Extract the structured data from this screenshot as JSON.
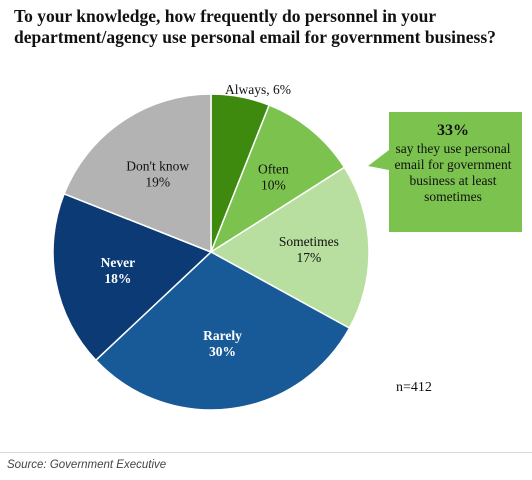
{
  "chart_data": {
    "type": "pie",
    "title": "To your knowledge, how frequently do personnel in your department/agency use personal email for government business?",
    "slices": [
      {
        "label": "Always, 6%",
        "category": "Always",
        "value": 6,
        "color": "#3e8a0f"
      },
      {
        "label": "Often\n10%",
        "category": "Often",
        "value": 10,
        "color": "#7cc24e"
      },
      {
        "label": "Sometimes\n17%",
        "category": "Sometimes",
        "value": 17,
        "color": "#b9dfa0"
      },
      {
        "label": "Rarely\n30%",
        "category": "Rarely",
        "value": 30,
        "color": "#185a98"
      },
      {
        "label": "Never\n18%",
        "category": "Never",
        "value": 18,
        "color": "#0b3a75"
      },
      {
        "label": "Don't know\n19%",
        "category": "Don't know",
        "value": 19,
        "color": "#b3b3b3"
      }
    ],
    "callout": {
      "percent": "33%",
      "text": "say they use personal email for government business at least sometimes",
      "color": "#7cc24e"
    },
    "n_label": "n=412",
    "source": "Source: Government Executive"
  }
}
